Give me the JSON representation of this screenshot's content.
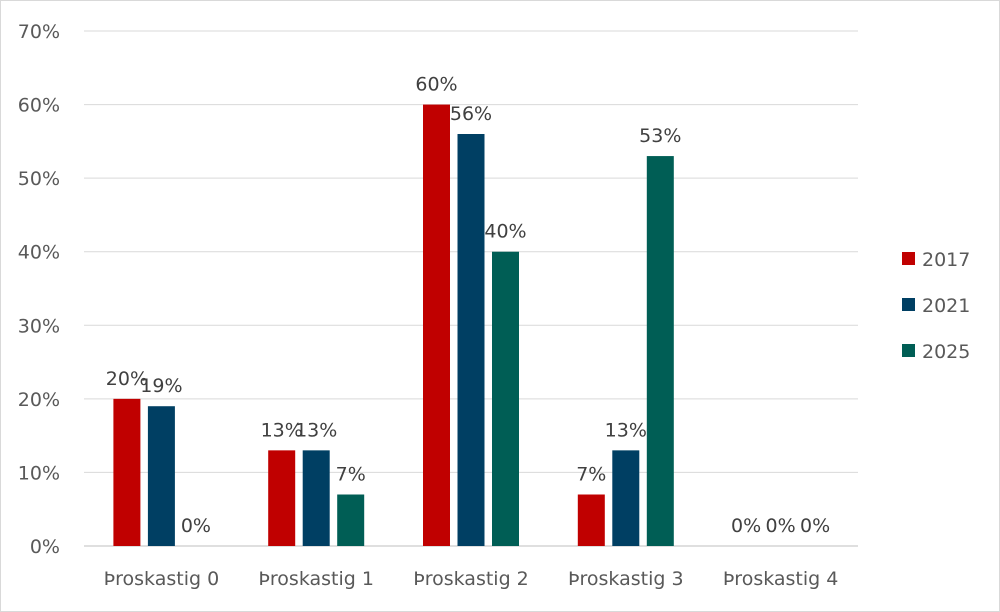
{
  "chart_data": {
    "type": "bar",
    "title": "",
    "xlabel": "",
    "ylabel": "",
    "ylim": [
      0,
      70
    ],
    "y_ticks": [
      {
        "value": 0,
        "label": "0%"
      },
      {
        "value": 10,
        "label": "10%"
      },
      {
        "value": 20,
        "label": "20%"
      },
      {
        "value": 30,
        "label": "30%"
      },
      {
        "value": 40,
        "label": "40%"
      },
      {
        "value": 50,
        "label": "50%"
      },
      {
        "value": 60,
        "label": "60%"
      },
      {
        "value": 70,
        "label": "70%"
      }
    ],
    "grid": true,
    "legend_position": "right",
    "categories": [
      "Þroskastig 0",
      "Þroskastig 1",
      "Þroskastig 2",
      "Þroskastig 3",
      "Þroskastig 4"
    ],
    "series": [
      {
        "name": "2017",
        "color": "#c00000",
        "values": [
          20,
          13,
          60,
          7,
          0
        ],
        "labels": [
          "20%",
          "13%",
          "60%",
          "7%",
          "0%"
        ]
      },
      {
        "name": "2021",
        "color": "#003f63",
        "values": [
          19,
          13,
          56,
          13,
          0
        ],
        "labels": [
          "19%",
          "13%",
          "56%",
          "13%",
          "0%"
        ]
      },
      {
        "name": "2025",
        "color": "#005e55",
        "values": [
          0,
          7,
          40,
          53,
          0
        ],
        "labels": [
          "0%",
          "7%",
          "40%",
          "53%",
          "0%"
        ]
      }
    ]
  }
}
